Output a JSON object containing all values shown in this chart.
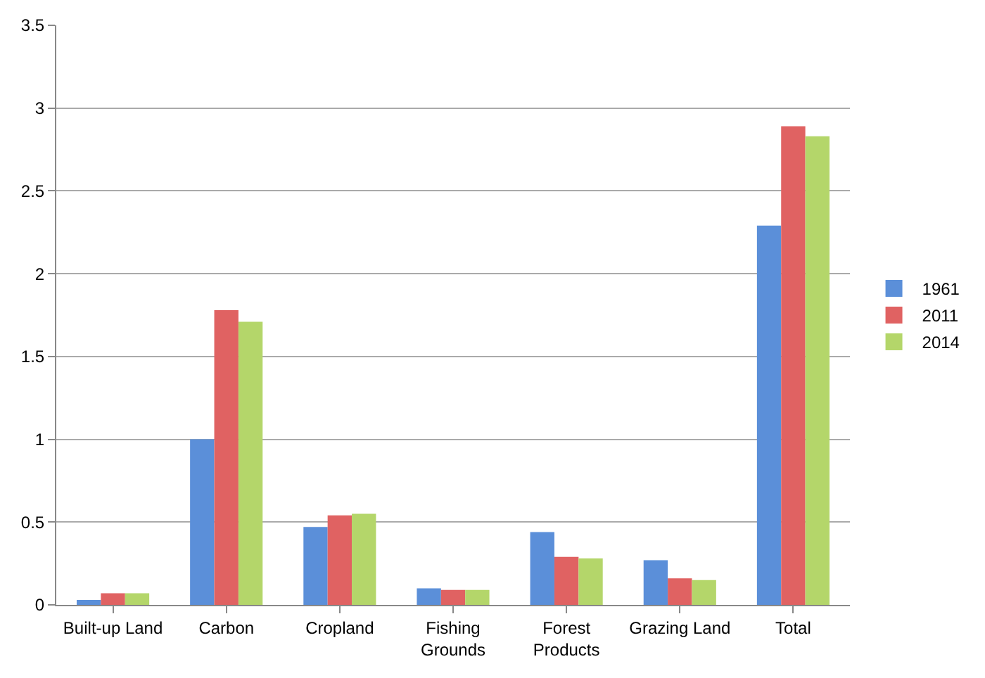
{
  "chart_data": {
    "type": "bar",
    "categories": [
      "Built-up Land",
      "Carbon",
      "Cropland",
      "Fishing Grounds",
      "Forest Products",
      "Grazing Land",
      "Total"
    ],
    "series": [
      {
        "name": "1961",
        "color": "#5b8fd9",
        "values": [
          0.03,
          1.0,
          0.47,
          0.1,
          0.44,
          0.27,
          2.29
        ]
      },
      {
        "name": "2011",
        "color": "#e06262",
        "values": [
          0.07,
          1.78,
          0.54,
          0.09,
          0.29,
          0.16,
          2.89
        ]
      },
      {
        "name": "2014",
        "color": "#b4d66a",
        "values": [
          0.07,
          1.71,
          0.55,
          0.09,
          0.28,
          0.15,
          2.83
        ]
      }
    ],
    "ylim": [
      0,
      3.5
    ],
    "yticks": [
      0,
      0.5,
      1,
      1.5,
      2,
      2.5,
      3,
      3.5
    ],
    "grid": "y",
    "legend": "right"
  }
}
